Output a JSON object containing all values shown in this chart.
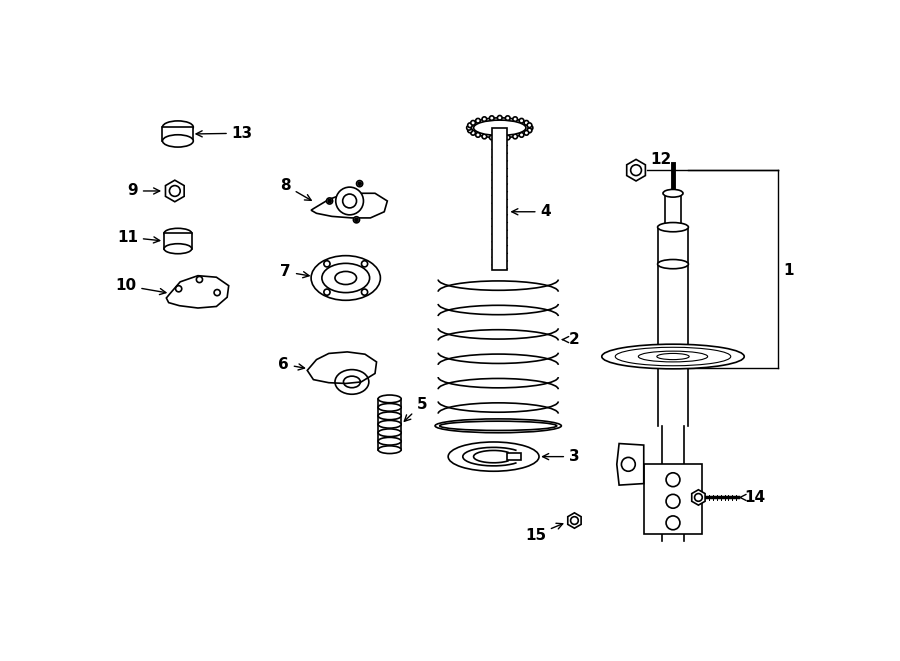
{
  "bg_color": "#ffffff",
  "line_color": "#000000",
  "lw": 1.2
}
